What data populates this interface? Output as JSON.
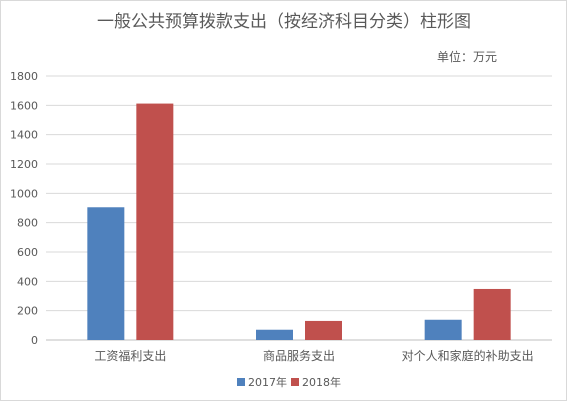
{
  "chart_data": {
    "type": "bar",
    "title": "一般公共预算拨款支出（按经济科目分类）柱形图",
    "unit_label": "单位：万元",
    "xlabel": "",
    "ylabel": "",
    "categories": [
      "工资福利支出",
      "商品服务支出",
      "对个人和家庭的补助支出"
    ],
    "series": [
      {
        "name": "2017年",
        "values": [
          905,
          70,
          138
        ],
        "color": "#4f81bd"
      },
      {
        "name": "2018年",
        "values": [
          1612,
          130,
          348
        ],
        "color": "#c0504d"
      }
    ],
    "ylim": [
      0,
      1800
    ],
    "yticks": [
      0,
      200,
      400,
      600,
      800,
      1000,
      1200,
      1400,
      1600,
      1800
    ],
    "grid": true,
    "legend_position": "bottom"
  }
}
